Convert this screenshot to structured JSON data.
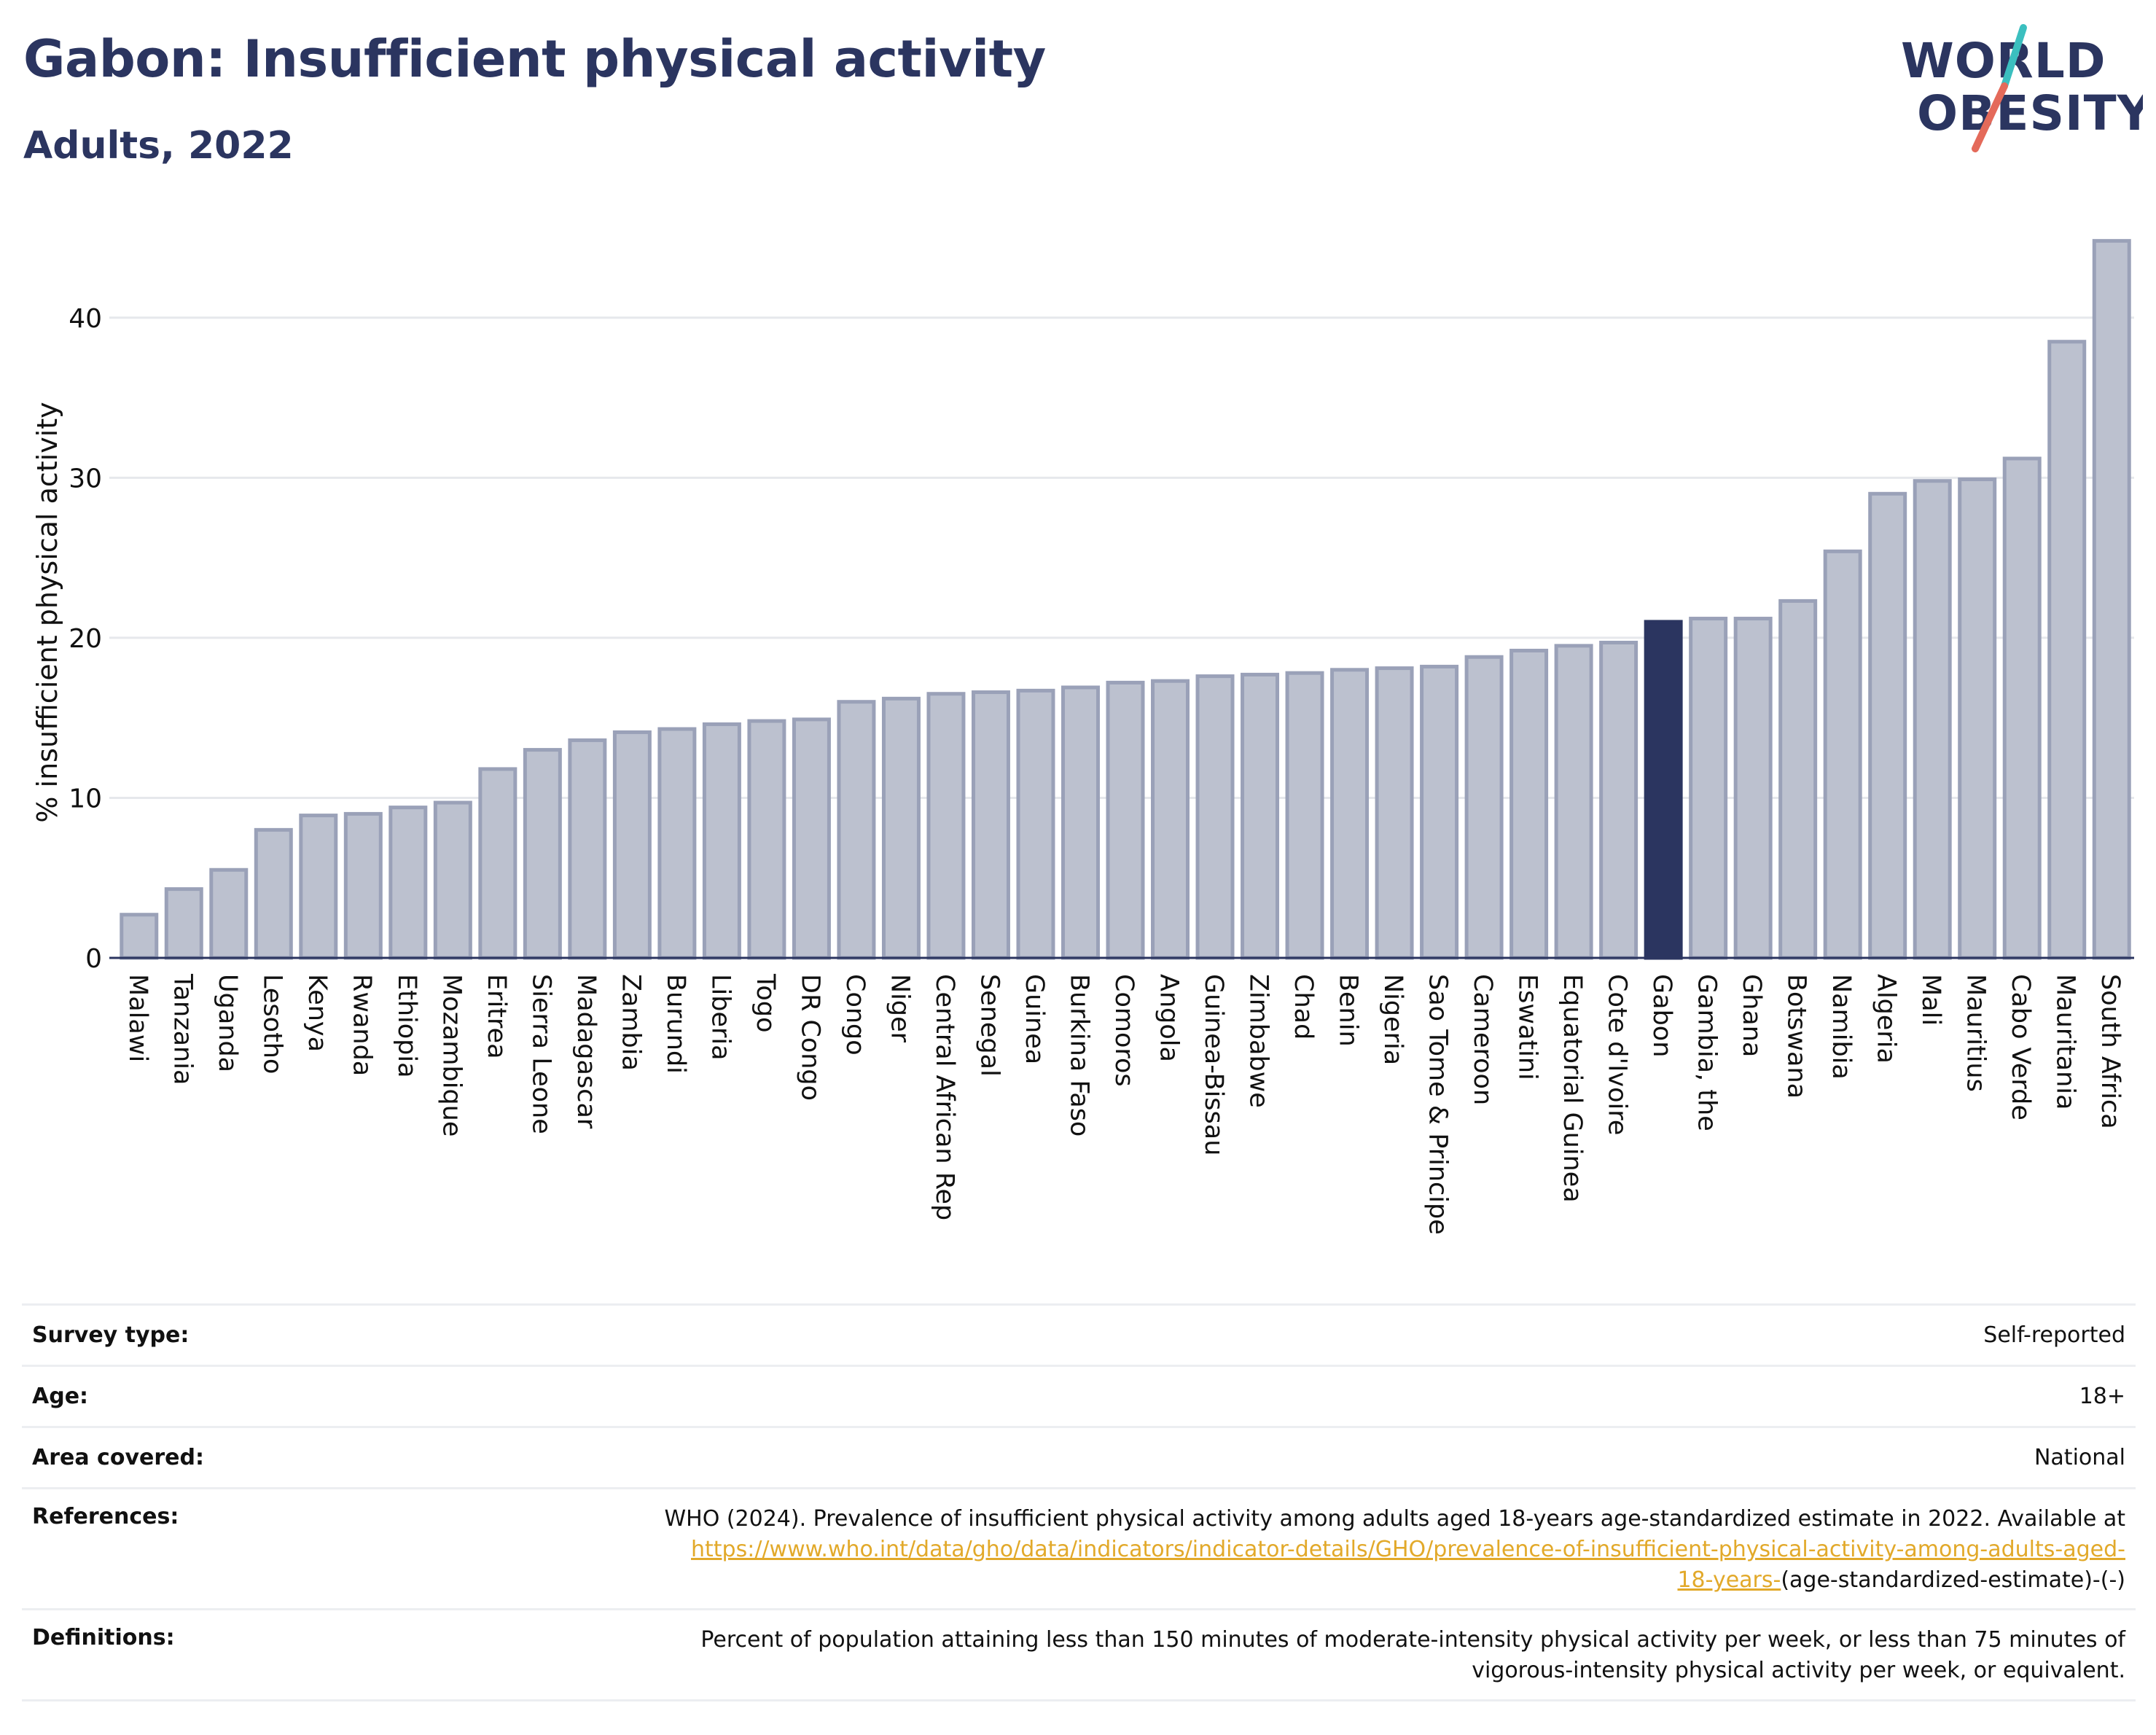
{
  "header": {
    "title": "Gabon: Insufficient physical activity",
    "subtitle": "Adults, 2022"
  },
  "logo": {
    "line1": "WORLD",
    "line2": "OBESITY"
  },
  "colors": {
    "bar": "#bcc1cf",
    "bar_stroke": "#9aa1b8",
    "highlight": "#2b3560",
    "text": "#2b3560",
    "link": "#e2a92a"
  },
  "chart_data": {
    "type": "bar",
    "ylabel": "% insufficient physical activity",
    "ylim": [
      0,
      45
    ],
    "yticks": [
      0,
      10,
      20,
      30,
      40
    ],
    "grid": true,
    "highlight": "Gabon",
    "categories": [
      "Malawi",
      "Tanzania",
      "Uganda",
      "Lesotho",
      "Kenya",
      "Rwanda",
      "Ethiopia",
      "Mozambique",
      "Eritrea",
      "Sierra Leone",
      "Madagascar",
      "Zambia",
      "Burundi",
      "Liberia",
      "Togo",
      "DR Congo",
      "Congo",
      "Niger",
      "Central African Rep",
      "Senegal",
      "Guinea",
      "Burkina Faso",
      "Comoros",
      "Angola",
      "Guinea-Bissau",
      "Zimbabwe",
      "Chad",
      "Benin",
      "Nigeria",
      "Sao Tome & Principe",
      "Cameroon",
      "Eswatini",
      "Equatorial Guinea",
      "Cote d'Ivoire",
      "Gabon",
      "Gambia, the",
      "Ghana",
      "Botswana",
      "Namibia",
      "Algeria",
      "Mali",
      "Mauritius",
      "Cabo Verde",
      "Mauritania",
      "South Africa"
    ],
    "values": [
      2.7,
      4.3,
      5.5,
      8.0,
      8.9,
      9.0,
      9.4,
      9.7,
      11.8,
      13.0,
      13.6,
      14.1,
      14.3,
      14.6,
      14.8,
      14.9,
      16.0,
      16.2,
      16.5,
      16.6,
      16.7,
      16.9,
      17.2,
      17.3,
      17.6,
      17.7,
      17.8,
      18.0,
      18.1,
      18.2,
      18.8,
      19.2,
      19.5,
      19.7,
      21.0,
      21.2,
      21.2,
      22.3,
      25.4,
      29.0,
      29.8,
      29.9,
      31.2,
      38.5,
      44.8
    ]
  },
  "meta": {
    "survey_type_label": "Survey type:",
    "survey_type_value": "Self-reported",
    "age_label": "Age:",
    "age_value": "18+",
    "area_label": "Area covered:",
    "area_value": "National",
    "references_label": "References:",
    "references_text": "WHO (2024). Prevalence of insufficient physical activity among adults aged 18-years age-standardized estimate in 2022. Available at",
    "references_link_1": "https://www.who.int/data/gho/data/indicators/indicator-details/GHO/prevalence-of-insufficient-physical-activity-among-adults-aged-",
    "references_link_2": "18-years-",
    "references_tail": "(age-standardized-estimate)-(-)",
    "definitions_label": "Definitions:",
    "definitions_line1": "Percent of population attaining less than 150 minutes of moderate-intensity physical activity per week, or less than 75 minutes of",
    "definitions_line2": "vigorous-intensity physical activity per week, or equivalent."
  }
}
